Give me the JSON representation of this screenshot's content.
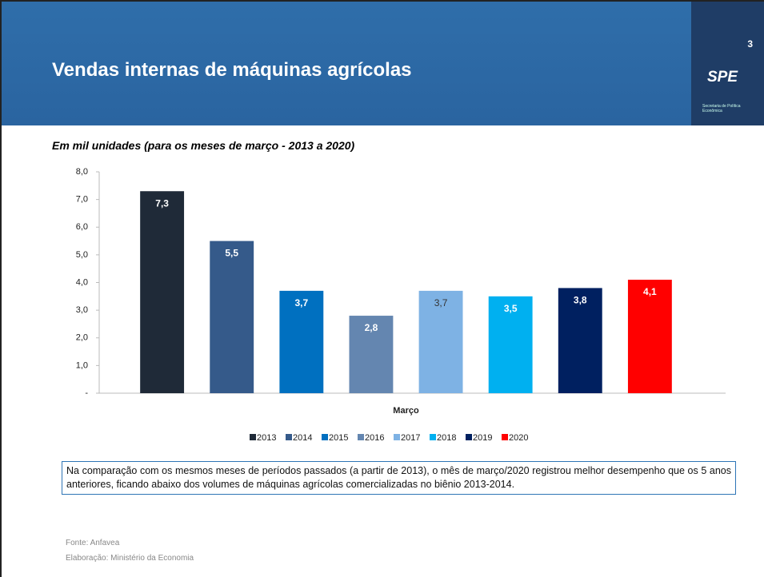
{
  "header": {
    "title": "Vendas internas de máquinas agrícolas",
    "page_number": "3",
    "logo": "SPE",
    "logo_caption": "Secretaria de Política Econômica"
  },
  "chart_data": {
    "type": "bar",
    "subtitle": "Em mil unidades (para os meses de março - 2013 a 2020)",
    "categories": [
      "Março"
    ],
    "series": [
      {
        "name": "2013",
        "color": "#1f2a38",
        "values": [
          7.3
        ],
        "value_labels": [
          "7,3"
        ]
      },
      {
        "name": "2014",
        "color": "#355a8a",
        "values": [
          5.5
        ],
        "value_labels": [
          "5,5"
        ]
      },
      {
        "name": "2015",
        "color": "#0070c0",
        "values": [
          3.7
        ],
        "value_labels": [
          "3,7"
        ]
      },
      {
        "name": "2016",
        "color": "#6486b0",
        "values": [
          2.8
        ],
        "value_labels": [
          "2,8"
        ]
      },
      {
        "name": "2017",
        "color": "#7eb2e4",
        "values": [
          3.7
        ],
        "value_labels": [
          "3,7"
        ]
      },
      {
        "name": "2018",
        "color": "#00b0f0",
        "values": [
          3.5
        ],
        "value_labels": [
          "3,5"
        ]
      },
      {
        "name": "2019",
        "color": "#002060",
        "values": [
          3.8
        ],
        "value_labels": [
          "3,8"
        ]
      },
      {
        "name": "2020",
        "color": "#ff0000",
        "values": [
          4.1
        ],
        "value_labels": [
          "4,1"
        ]
      }
    ],
    "ylim": [
      0,
      8
    ],
    "yticks": [
      {
        "value": 0,
        "label": "-"
      },
      {
        "value": 1,
        "label": "1,0"
      },
      {
        "value": 2,
        "label": "2,0"
      },
      {
        "value": 3,
        "label": "3,0"
      },
      {
        "value": 4,
        "label": "4,0"
      },
      {
        "value": 5,
        "label": "5,0"
      },
      {
        "value": 6,
        "label": "6,0"
      },
      {
        "value": 7,
        "label": "7,0"
      },
      {
        "value": 8,
        "label": "8,0"
      }
    ],
    "legend": "bottom"
  },
  "note": "Na comparação com os mesmos meses de períodos passados (a partir de 2013), o mês de março/2020 registrou melhor desempenho que os 5 anos anteriores, ficando abaixo dos volumes de máquinas agrícolas comercializadas no biênio 2013-2014.",
  "footer": {
    "source": "Fonte: Anfavea",
    "author": "Elaboração: Ministério da Economia"
  }
}
